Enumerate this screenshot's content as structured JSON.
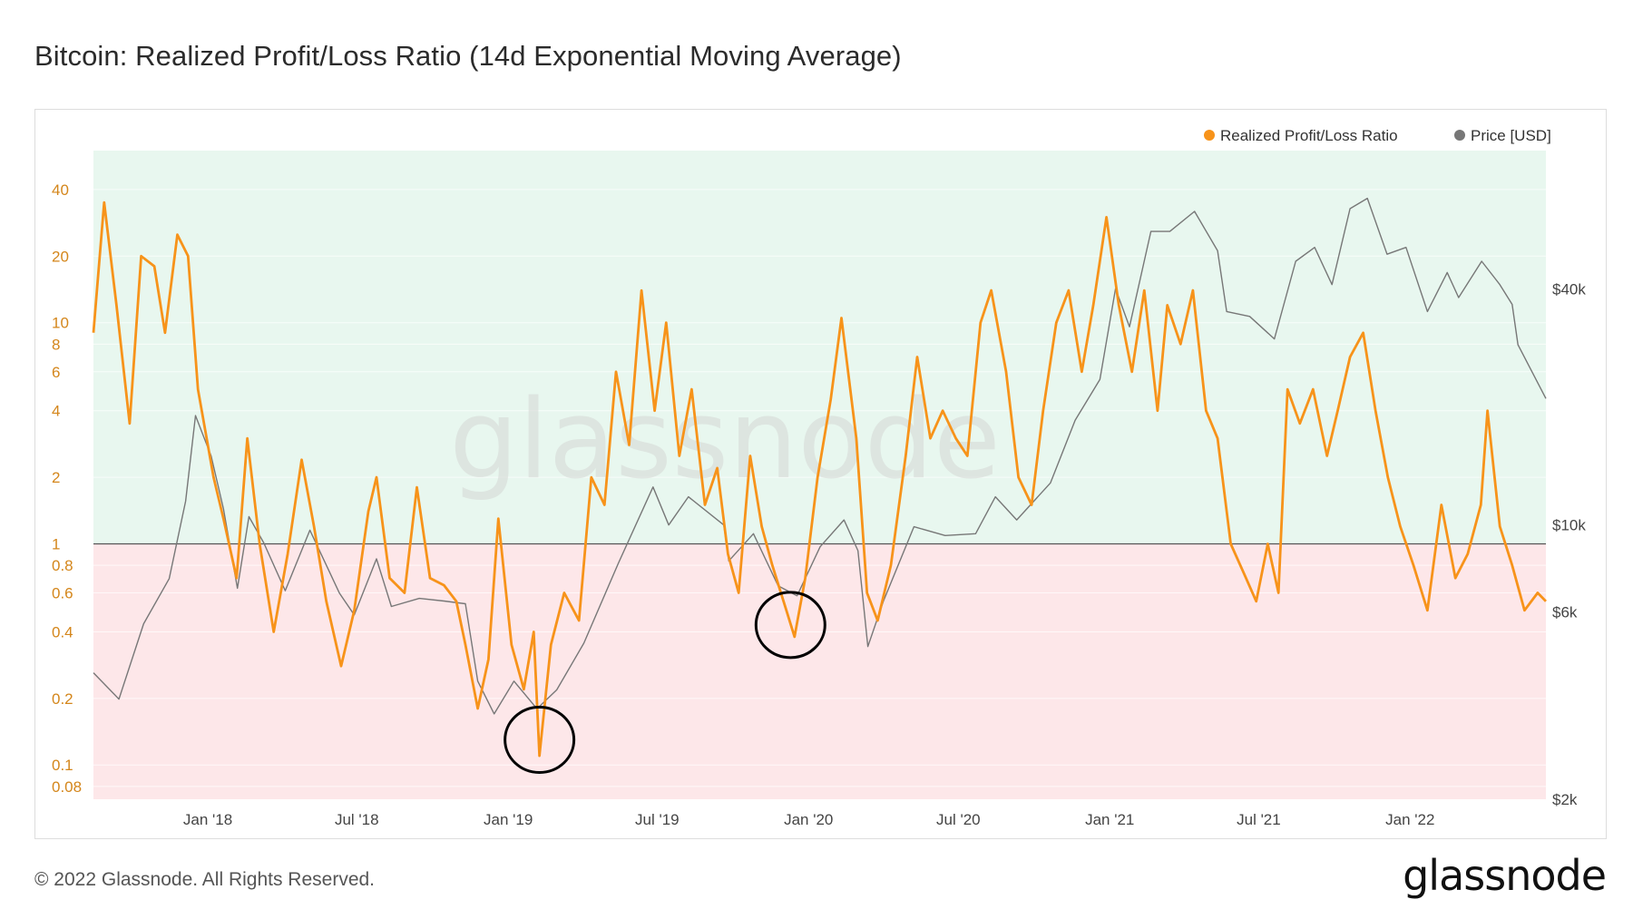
{
  "header": {
    "title": "Bitcoin: Realized Profit/Loss Ratio (14d Exponential Moving Average)"
  },
  "footer": {
    "copyright": "© 2022 Glassnode. All Rights Reserved.",
    "brand": "glassnode"
  },
  "watermark": "glassnode",
  "colors": {
    "ratio": "#f7931a",
    "price": "#777777",
    "profit_zone": "#e8f7ef",
    "loss_zone": "#fde7e9",
    "baseline": "#555555"
  },
  "chart_data": {
    "type": "line",
    "x_range": [
      "2017-08-15",
      "2022-06-15"
    ],
    "x_ticks": [
      {
        "date": "2018-01-01",
        "label": "Jan '18"
      },
      {
        "date": "2018-07-01",
        "label": "Jul '18"
      },
      {
        "date": "2019-01-01",
        "label": "Jan '19"
      },
      {
        "date": "2019-07-01",
        "label": "Jul '19"
      },
      {
        "date": "2020-01-01",
        "label": "Jan '20"
      },
      {
        "date": "2020-07-01",
        "label": "Jul '20"
      },
      {
        "date": "2021-01-01",
        "label": "Jan '21"
      },
      {
        "date": "2021-07-01",
        "label": "Jul '21"
      },
      {
        "date": "2022-01-01",
        "label": "Jan '22"
      }
    ],
    "y_left": {
      "scale": "log",
      "range": [
        0.07,
        60
      ],
      "ticks": [
        {
          "v": 40,
          "label": "40"
        },
        {
          "v": 20,
          "label": "20"
        },
        {
          "v": 10,
          "label": "10"
        },
        {
          "v": 8,
          "label": "8"
        },
        {
          "v": 6,
          "label": "6"
        },
        {
          "v": 4,
          "label": "4"
        },
        {
          "v": 2,
          "label": "2"
        },
        {
          "v": 1,
          "label": "1"
        },
        {
          "v": 0.8,
          "label": "0.8"
        },
        {
          "v": 0.6,
          "label": "0.6"
        },
        {
          "v": 0.4,
          "label": "0.4"
        },
        {
          "v": 0.2,
          "label": "0.2"
        },
        {
          "v": 0.1,
          "label": "0.1"
        },
        {
          "v": 0.08,
          "label": "0.08"
        }
      ]
    },
    "y_right": {
      "scale": "log",
      "range": [
        2000,
        90000
      ],
      "ticks": [
        {
          "v": 40000,
          "label": "$40k"
        },
        {
          "v": 10000,
          "label": "$10k"
        },
        {
          "v": 6000,
          "label": "$6k"
        },
        {
          "v": 2000,
          "label": "$2k"
        }
      ]
    },
    "threshold": 1,
    "legend": {
      "position": "top-right"
    },
    "series": [
      {
        "name": "Realized Profit/Loss Ratio",
        "axis": "left",
        "points": [
          [
            "2017-08-15",
            9
          ],
          [
            "2017-08-28",
            35
          ],
          [
            "2017-09-12",
            12
          ],
          [
            "2017-09-28",
            3.5
          ],
          [
            "2017-10-12",
            20
          ],
          [
            "2017-10-28",
            18
          ],
          [
            "2017-11-10",
            9
          ],
          [
            "2017-11-25",
            25
          ],
          [
            "2017-12-08",
            20
          ],
          [
            "2017-12-20",
            5
          ],
          [
            "2018-01-08",
            2
          ],
          [
            "2018-01-20",
            1.3
          ],
          [
            "2018-02-05",
            0.7
          ],
          [
            "2018-02-18",
            3
          ],
          [
            "2018-03-05",
            1.0
          ],
          [
            "2018-03-22",
            0.4
          ],
          [
            "2018-04-08",
            0.9
          ],
          [
            "2018-04-25",
            2.4
          ],
          [
            "2018-05-10",
            1.2
          ],
          [
            "2018-05-25",
            0.55
          ],
          [
            "2018-06-12",
            0.28
          ],
          [
            "2018-06-28",
            0.5
          ],
          [
            "2018-07-15",
            1.4
          ],
          [
            "2018-07-25",
            2.0
          ],
          [
            "2018-08-10",
            0.7
          ],
          [
            "2018-08-28",
            0.6
          ],
          [
            "2018-09-12",
            1.8
          ],
          [
            "2018-09-28",
            0.7
          ],
          [
            "2018-10-15",
            0.65
          ],
          [
            "2018-10-30",
            0.55
          ],
          [
            "2018-11-10",
            0.35
          ],
          [
            "2018-11-25",
            0.18
          ],
          [
            "2018-12-08",
            0.3
          ],
          [
            "2018-12-20",
            1.3
          ],
          [
            "2019-01-05",
            0.35
          ],
          [
            "2019-01-20",
            0.22
          ],
          [
            "2019-02-01",
            0.4
          ],
          [
            "2019-02-08",
            0.11
          ],
          [
            "2019-02-22",
            0.35
          ],
          [
            "2019-03-10",
            0.6
          ],
          [
            "2019-03-28",
            0.45
          ],
          [
            "2019-04-12",
            2.0
          ],
          [
            "2019-04-28",
            1.5
          ],
          [
            "2019-05-12",
            6
          ],
          [
            "2019-05-28",
            2.8
          ],
          [
            "2019-06-12",
            14
          ],
          [
            "2019-06-28",
            4
          ],
          [
            "2019-07-12",
            10
          ],
          [
            "2019-07-28",
            2.5
          ],
          [
            "2019-08-12",
            5
          ],
          [
            "2019-08-28",
            1.5
          ],
          [
            "2019-09-12",
            2.2
          ],
          [
            "2019-09-25",
            0.9
          ],
          [
            "2019-10-08",
            0.6
          ],
          [
            "2019-10-22",
            2.5
          ],
          [
            "2019-11-05",
            1.2
          ],
          [
            "2019-11-18",
            0.8
          ],
          [
            "2019-12-05",
            0.5
          ],
          [
            "2019-12-15",
            0.38
          ],
          [
            "2019-12-28",
            0.7
          ],
          [
            "2020-01-12",
            2.0
          ],
          [
            "2020-01-28",
            4.5
          ],
          [
            "2020-02-10",
            10.5
          ],
          [
            "2020-02-28",
            3
          ],
          [
            "2020-03-12",
            0.6
          ],
          [
            "2020-03-25",
            0.45
          ],
          [
            "2020-04-10",
            0.8
          ],
          [
            "2020-04-28",
            2.5
          ],
          [
            "2020-05-12",
            7
          ],
          [
            "2020-05-28",
            3
          ],
          [
            "2020-06-12",
            4
          ],
          [
            "2020-06-28",
            3
          ],
          [
            "2020-07-12",
            2.5
          ],
          [
            "2020-07-28",
            10
          ],
          [
            "2020-08-10",
            14
          ],
          [
            "2020-08-28",
            6
          ],
          [
            "2020-09-12",
            2
          ],
          [
            "2020-09-28",
            1.5
          ],
          [
            "2020-10-12",
            4
          ],
          [
            "2020-10-28",
            10
          ],
          [
            "2020-11-12",
            14
          ],
          [
            "2020-11-28",
            6
          ],
          [
            "2020-12-12",
            12
          ],
          [
            "2020-12-28",
            30
          ],
          [
            "2021-01-12",
            12
          ],
          [
            "2021-01-28",
            6
          ],
          [
            "2021-02-12",
            14
          ],
          [
            "2021-02-28",
            4
          ],
          [
            "2021-03-12",
            12
          ],
          [
            "2021-03-28",
            8
          ],
          [
            "2021-04-12",
            14
          ],
          [
            "2021-04-28",
            4
          ],
          [
            "2021-05-12",
            3
          ],
          [
            "2021-05-28",
            1.0
          ],
          [
            "2021-06-12",
            0.75
          ],
          [
            "2021-06-28",
            0.55
          ],
          [
            "2021-07-12",
            1.0
          ],
          [
            "2021-07-25",
            0.6
          ],
          [
            "2021-08-05",
            5
          ],
          [
            "2021-08-20",
            3.5
          ],
          [
            "2021-09-05",
            5
          ],
          [
            "2021-09-22",
            2.5
          ],
          [
            "2021-10-05",
            4
          ],
          [
            "2021-10-20",
            7
          ],
          [
            "2021-11-05",
            9
          ],
          [
            "2021-11-20",
            4
          ],
          [
            "2021-12-05",
            2.0
          ],
          [
            "2021-12-20",
            1.2
          ],
          [
            "2022-01-05",
            0.8
          ],
          [
            "2022-01-22",
            0.5
          ],
          [
            "2022-02-08",
            1.5
          ],
          [
            "2022-02-25",
            0.7
          ],
          [
            "2022-03-12",
            0.9
          ],
          [
            "2022-03-28",
            1.5
          ],
          [
            "2022-04-05",
            4
          ],
          [
            "2022-04-20",
            1.2
          ],
          [
            "2022-05-05",
            0.8
          ],
          [
            "2022-05-20",
            0.5
          ],
          [
            "2022-06-05",
            0.6
          ],
          [
            "2022-06-15",
            0.55
          ]
        ]
      },
      {
        "name": "Price [USD]",
        "axis": "right",
        "points": [
          [
            "2017-08-15",
            4200
          ],
          [
            "2017-09-15",
            3600
          ],
          [
            "2017-10-15",
            5600
          ],
          [
            "2017-11-15",
            7300
          ],
          [
            "2017-12-05",
            11500
          ],
          [
            "2017-12-17",
            19000
          ],
          [
            "2018-01-05",
            15000
          ],
          [
            "2018-01-20",
            11000
          ],
          [
            "2018-02-06",
            6900
          ],
          [
            "2018-02-20",
            10500
          ],
          [
            "2018-03-10",
            9000
          ],
          [
            "2018-04-05",
            6800
          ],
          [
            "2018-05-05",
            9700
          ],
          [
            "2018-06-10",
            6700
          ],
          [
            "2018-06-28",
            5900
          ],
          [
            "2018-07-25",
            8200
          ],
          [
            "2018-08-12",
            6200
          ],
          [
            "2018-09-15",
            6500
          ],
          [
            "2018-10-15",
            6400
          ],
          [
            "2018-11-10",
            6300
          ],
          [
            "2018-11-25",
            4000
          ],
          [
            "2018-12-15",
            3300
          ],
          [
            "2019-01-08",
            4000
          ],
          [
            "2019-02-05",
            3400
          ],
          [
            "2019-03-01",
            3800
          ],
          [
            "2019-04-03",
            5000
          ],
          [
            "2019-05-15",
            8000
          ],
          [
            "2019-06-26",
            12500
          ],
          [
            "2019-07-15",
            10000
          ],
          [
            "2019-08-08",
            11800
          ],
          [
            "2019-09-20",
            10000
          ],
          [
            "2019-09-26",
            8100
          ],
          [
            "2019-10-26",
            9500
          ],
          [
            "2019-11-25",
            7000
          ],
          [
            "2019-12-18",
            6600
          ],
          [
            "2020-01-15",
            8800
          ],
          [
            "2020-02-13",
            10300
          ],
          [
            "2020-03-01",
            8600
          ],
          [
            "2020-03-13",
            4900
          ],
          [
            "2020-04-01",
            6400
          ],
          [
            "2020-05-08",
            9900
          ],
          [
            "2020-06-15",
            9400
          ],
          [
            "2020-07-22",
            9500
          ],
          [
            "2020-08-15",
            11800
          ],
          [
            "2020-09-10",
            10300
          ],
          [
            "2020-10-21",
            12800
          ],
          [
            "2020-11-20",
            18500
          ],
          [
            "2020-12-20",
            23500
          ],
          [
            "2021-01-08",
            40000
          ],
          [
            "2021-01-25",
            32000
          ],
          [
            "2021-02-20",
            56000
          ],
          [
            "2021-03-15",
            56000
          ],
          [
            "2021-04-14",
            63000
          ],
          [
            "2021-05-12",
            50000
          ],
          [
            "2021-05-23",
            35000
          ],
          [
            "2021-06-20",
            34000
          ],
          [
            "2021-07-20",
            29800
          ],
          [
            "2021-08-15",
            47000
          ],
          [
            "2021-09-07",
            51000
          ],
          [
            "2021-09-28",
            41000
          ],
          [
            "2021-10-20",
            64000
          ],
          [
            "2021-11-10",
            68000
          ],
          [
            "2021-12-04",
            49000
          ],
          [
            "2021-12-27",
            51000
          ],
          [
            "2022-01-22",
            35000
          ],
          [
            "2022-02-15",
            44000
          ],
          [
            "2022-03-01",
            38000
          ],
          [
            "2022-03-29",
            47000
          ],
          [
            "2022-04-20",
            41000
          ],
          [
            "2022-05-05",
            36500
          ],
          [
            "2022-05-12",
            28800
          ],
          [
            "2022-06-15",
            21000
          ]
        ]
      }
    ],
    "annotations": [
      {
        "type": "circle",
        "date": "2019-02-08",
        "value": 0.13
      },
      {
        "type": "circle",
        "date": "2019-12-10",
        "value": 0.43
      }
    ]
  }
}
